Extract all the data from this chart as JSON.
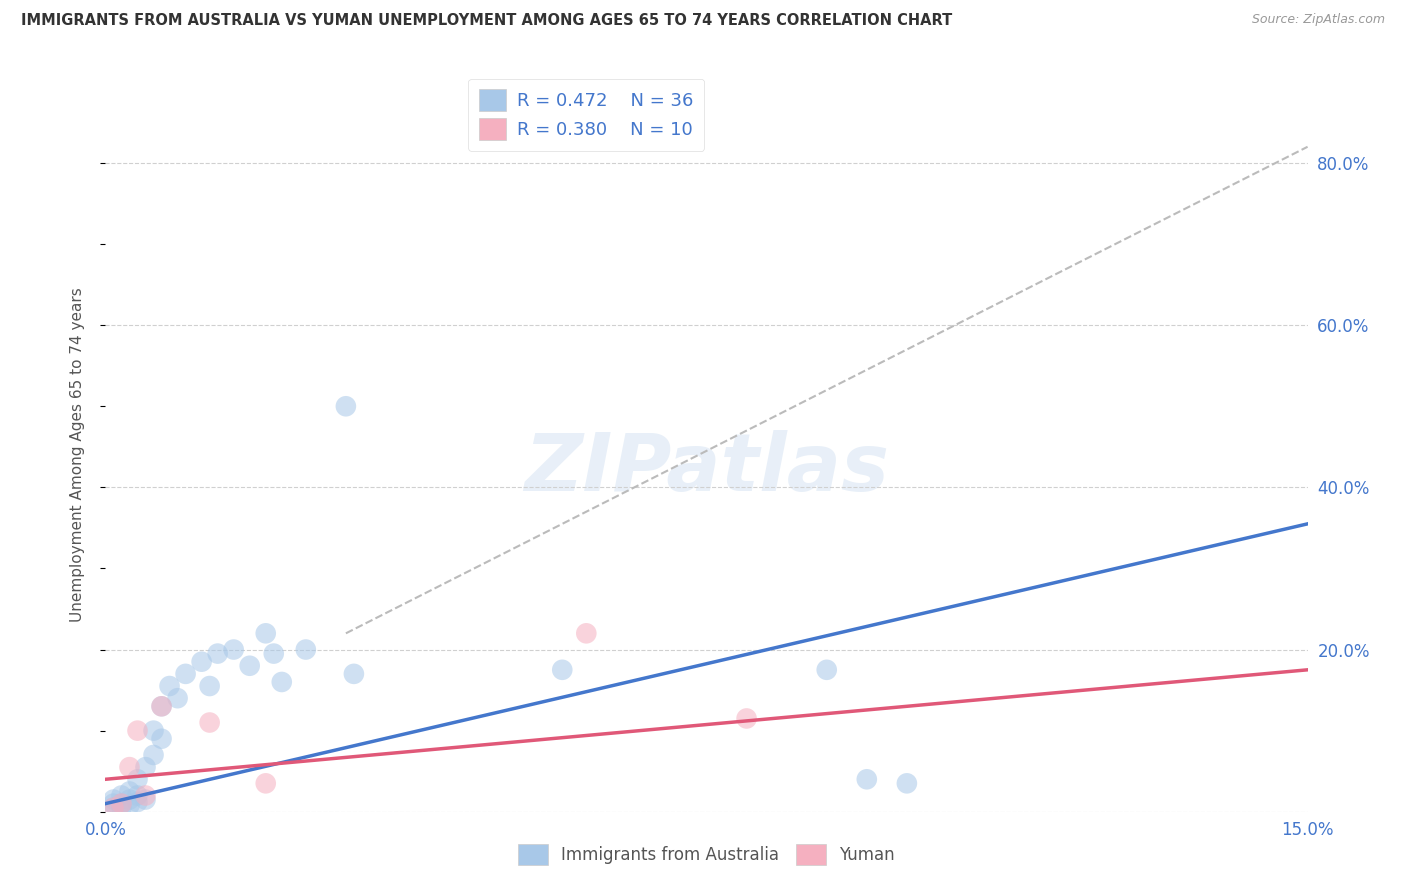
{
  "title": "IMMIGRANTS FROM AUSTRALIA VS YUMAN UNEMPLOYMENT AMONG AGES 65 TO 74 YEARS CORRELATION CHART",
  "source": "Source: ZipAtlas.com",
  "ylabel": "Unemployment Among Ages 65 to 74 years",
  "xlim": [
    0.0,
    0.15
  ],
  "ylim": [
    0.0,
    0.88
  ],
  "blue_color": "#a8c8e8",
  "blue_line_color": "#4477cc",
  "pink_color": "#f5b0c0",
  "pink_line_color": "#e05878",
  "dashed_line_color": "#bbbbbb",
  "watermark": "ZIPatlas",
  "background_color": "#ffffff",
  "legend_text_color": "#4477cc",
  "blue_scatter_x": [
    0.001,
    0.001,
    0.001,
    0.002,
    0.002,
    0.002,
    0.003,
    0.003,
    0.003,
    0.004,
    0.004,
    0.004,
    0.005,
    0.005,
    0.006,
    0.006,
    0.007,
    0.007,
    0.008,
    0.009,
    0.01,
    0.012,
    0.013,
    0.014,
    0.016,
    0.018,
    0.02,
    0.021,
    0.022,
    0.025,
    0.03,
    0.031,
    0.057,
    0.09,
    0.095,
    0.1
  ],
  "blue_scatter_y": [
    0.005,
    0.01,
    0.015,
    0.005,
    0.01,
    0.02,
    0.008,
    0.015,
    0.025,
    0.012,
    0.02,
    0.04,
    0.015,
    0.055,
    0.07,
    0.1,
    0.09,
    0.13,
    0.155,
    0.14,
    0.17,
    0.185,
    0.155,
    0.195,
    0.2,
    0.18,
    0.22,
    0.195,
    0.16,
    0.2,
    0.5,
    0.17,
    0.175,
    0.175,
    0.04,
    0.035
  ],
  "pink_scatter_x": [
    0.001,
    0.002,
    0.003,
    0.004,
    0.005,
    0.007,
    0.013,
    0.02,
    0.06,
    0.08
  ],
  "pink_scatter_y": [
    0.005,
    0.01,
    0.055,
    0.1,
    0.02,
    0.13,
    0.11,
    0.035,
    0.22,
    0.115
  ],
  "blue_line": [
    0.0,
    0.01,
    0.15,
    0.355
  ],
  "pink_line": [
    0.0,
    0.04,
    0.15,
    0.175
  ],
  "dash_line": [
    0.03,
    0.22,
    0.15,
    0.82
  ]
}
